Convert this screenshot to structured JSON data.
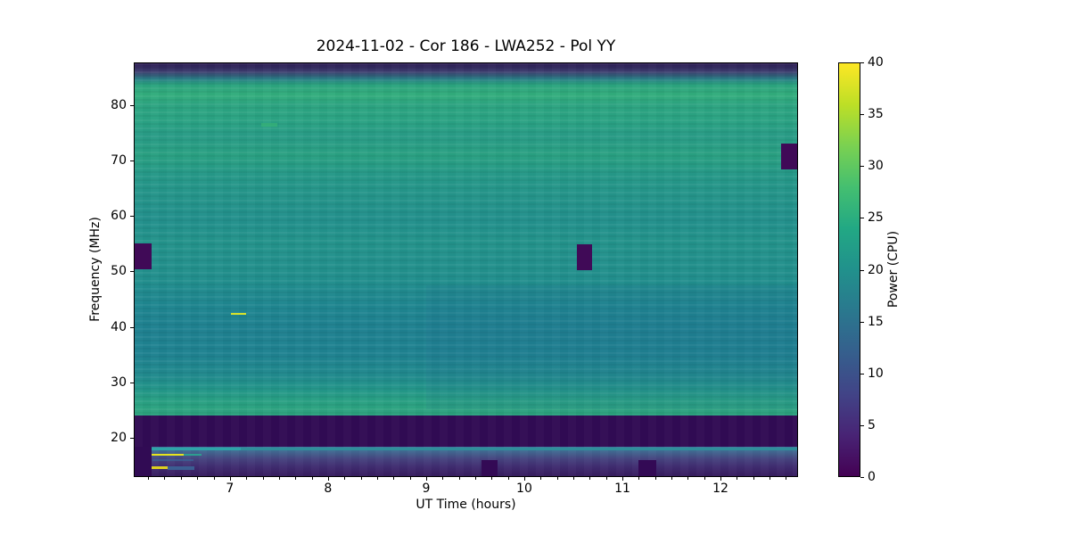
{
  "title": "2024-11-02 - Cor 186 - LWA252 - Pol YY",
  "xlabel": "UT Time (hours)",
  "ylabel": "Frequency (MHz)",
  "colorbar": {
    "label": "Power (CPU)",
    "min": 0,
    "max": 40,
    "ticks": [
      0,
      5,
      10,
      15,
      20,
      25,
      30,
      35,
      40
    ],
    "colormap": "viridis",
    "stops": [
      [
        0,
        "#440154"
      ],
      [
        4,
        "#482475"
      ],
      [
        8,
        "#414487"
      ],
      [
        12,
        "#355f8d"
      ],
      [
        16,
        "#2a788e"
      ],
      [
        20,
        "#21918c"
      ],
      [
        24,
        "#22a884"
      ],
      [
        28,
        "#44bf70"
      ],
      [
        32,
        "#7ad151"
      ],
      [
        36,
        "#bddf26"
      ],
      [
        40,
        "#fde725"
      ]
    ]
  },
  "chart_data": {
    "type": "heatmap",
    "title": "2024-11-02 - Cor 186 - LWA252 - Pol YY",
    "xlabel": "UT Time (hours)",
    "ylabel": "Frequency (MHz)",
    "colorbar_label": "Power (CPU)",
    "power_range_cpu": [
      0,
      40
    ],
    "colormap": "viridis",
    "x_range_hours": [
      6.02,
      12.79
    ],
    "y_range_mhz": [
      12.9,
      87.7
    ],
    "x_ticks": [
      7,
      8,
      9,
      10,
      11,
      12
    ],
    "x_minor_step_hours": 0.1666667,
    "y_ticks": [
      20,
      30,
      40,
      50,
      60,
      70,
      80
    ],
    "striation_limit_mhz": 23.9,
    "bands": [
      {
        "freq_mhz": [
          85.0,
          87.7
        ],
        "power_cpu": 3,
        "note": "dark indigo band at top edge"
      },
      {
        "freq_mhz": [
          81.0,
          84.0
        ],
        "power_cpu": 28,
        "note": "bright green band"
      },
      {
        "freq_mhz": [
          47.0,
          81.0
        ],
        "power_cpu": 22,
        "note": "teal-green body with horizontal striations"
      },
      {
        "freq_mhz": [
          28.0,
          47.0
        ],
        "power_cpu": 18,
        "note": "slightly bluer teal body, bluer toward later times"
      },
      {
        "freq_mhz": [
          23.9,
          28.0
        ],
        "power_cpu": 24,
        "note": "greener band above blocked region"
      },
      {
        "freq_mhz": [
          18.2,
          23.9
        ],
        "power_cpu": 1,
        "note": "dark blocked band across full time range"
      },
      {
        "freq_mhz": [
          12.9,
          18.2
        ],
        "power_cpu": 8,
        "note": "lower band: steel blue at top fading to purple at bottom"
      }
    ],
    "color_profile": [
      [
        87.7,
        "#2a1a52"
      ],
      [
        86.2,
        "#3c3c6e"
      ],
      [
        84.8,
        "#277f85"
      ],
      [
        83.8,
        "#2ba47f"
      ],
      [
        82.0,
        "#32ad7c"
      ],
      [
        80.2,
        "#2ca481"
      ],
      [
        77.5,
        "#2aa383"
      ],
      [
        74.5,
        "#289b86"
      ],
      [
        71.0,
        "#29a082"
      ],
      [
        67.5,
        "#259888"
      ],
      [
        63.5,
        "#24948a"
      ],
      [
        59.5,
        "#22908c"
      ],
      [
        55.5,
        "#23938b"
      ],
      [
        51.5,
        "#22908c"
      ],
      [
        48.5,
        "#218f8d"
      ],
      [
        46.0,
        "#1f898e"
      ],
      [
        43.0,
        "#1e8590"
      ],
      [
        39.5,
        "#1e8190"
      ],
      [
        35.0,
        "#1e8290"
      ],
      [
        31.0,
        "#208a8d"
      ],
      [
        28.5,
        "#239689"
      ],
      [
        26.5,
        "#28a083"
      ],
      [
        24.6,
        "#2ca37f"
      ],
      [
        23.9,
        "#2ca37f"
      ],
      [
        23.9,
        "#310b54"
      ],
      [
        18.2,
        "#310b54"
      ],
      [
        18.2,
        "#3e7a9c"
      ],
      [
        17.2,
        "#42648f"
      ],
      [
        16.0,
        "#46437f"
      ],
      [
        14.6,
        "#402c70"
      ],
      [
        13.4,
        "#3a2164"
      ],
      [
        12.9,
        "#371d5e"
      ]
    ],
    "features": [
      {
        "name": "dropout-left-51-55mhz",
        "x": [
          6.02,
          6.19
        ],
        "f": [
          50.4,
          55.0
        ],
        "color": "#400a57",
        "power_cpu": 0
      },
      {
        "name": "dropout-mid-50-55mhz",
        "x": [
          10.54,
          10.69
        ],
        "f": [
          50.2,
          54.9
        ],
        "color": "#400a57",
        "power_cpu": 0
      },
      {
        "name": "dropout-right-68-73mhz",
        "x": [
          12.63,
          12.79
        ],
        "f": [
          68.5,
          73.2
        ],
        "color": "#400a57",
        "power_cpu": 0
      },
      {
        "name": "dropout-bottom-left-column",
        "x": [
          6.02,
          6.19
        ],
        "f": [
          12.9,
          18.2
        ],
        "color": "#310b54",
        "power_cpu": 0
      },
      {
        "name": "cyan-band-18mhz",
        "x": [
          6.19,
          12.79
        ],
        "f": [
          17.55,
          18.1
        ],
        "color": "#2f919b",
        "opacity": 0.9,
        "power_cpu": 20
      },
      {
        "name": "cyan-band-bright-left",
        "x": [
          6.19,
          7.1
        ],
        "f": [
          17.55,
          18.1
        ],
        "color": "#2ea4a8",
        "power_cpu": 23
      },
      {
        "name": "bright-streak-17mhz-yellow",
        "x": [
          6.19,
          6.52
        ],
        "f": [
          16.6,
          17.0
        ],
        "color": "#e7e41e",
        "power_cpu": 38
      },
      {
        "name": "bright-streak-17mhz-teal-tail",
        "x": [
          6.52,
          6.7
        ],
        "f": [
          16.6,
          17.0
        ],
        "color": "#2d9e90",
        "power_cpu": 22
      },
      {
        "name": "blue-segment-16mhz",
        "x": [
          6.2,
          6.62
        ],
        "f": [
          15.6,
          16.0
        ],
        "color": "#3b5e92",
        "opacity": 0.85,
        "power_cpu": 13
      },
      {
        "name": "bright-streak-14mhz-yellow",
        "x": [
          6.19,
          6.36
        ],
        "f": [
          14.2,
          14.6
        ],
        "color": "#ddd01f",
        "power_cpu": 36
      },
      {
        "name": "blue-segment-14mhz",
        "x": [
          6.36,
          6.63
        ],
        "f": [
          14.1,
          14.7
        ],
        "color": "#3b5e92",
        "power_cpu": 13
      },
      {
        "name": "bright-streak-42mhz",
        "x": [
          7.0,
          7.16
        ],
        "f": [
          42.1,
          42.5
        ],
        "color": "#d7e32a",
        "power_cpu": 37
      },
      {
        "name": "faint-streak-76mhz",
        "x": [
          7.31,
          7.48
        ],
        "f": [
          76.3,
          76.8
        ],
        "color": "#38b376",
        "opacity": 0.7,
        "power_cpu": 28
      },
      {
        "name": "dropout-bottom-9.6h",
        "x": [
          9.56,
          9.73
        ],
        "f": [
          12.9,
          15.8
        ],
        "color": "#330a55",
        "power_cpu": 0
      },
      {
        "name": "dropout-bottom-11.3h",
        "x": [
          11.17,
          11.35
        ],
        "f": [
          12.9,
          15.8
        ],
        "color": "#330a55",
        "power_cpu": 0
      },
      {
        "name": "blue-drift-overlay",
        "x": [
          9.0,
          12.79
        ],
        "f": [
          25.0,
          47.5
        ],
        "color": "rgba(35,95,150,0.10)"
      }
    ]
  }
}
